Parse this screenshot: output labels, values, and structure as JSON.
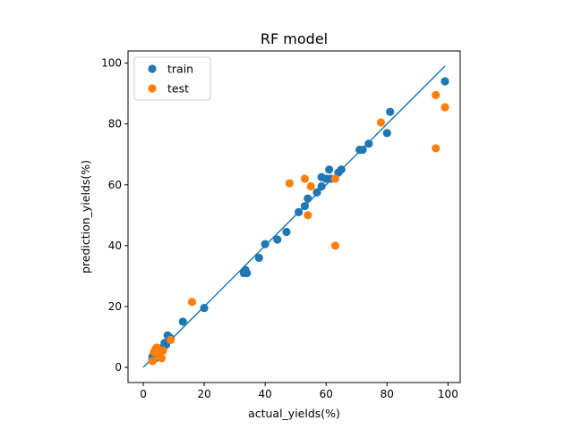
{
  "chart_data": {
    "type": "scatter",
    "title": "RF model",
    "xlabel": "actual_yields(%)",
    "ylabel": "prediction_yields(%)",
    "xlim": [
      -5,
      104
    ],
    "ylim": [
      -5,
      104
    ],
    "xticks": [
      0,
      20,
      40,
      60,
      80,
      100
    ],
    "yticks": [
      0,
      20,
      40,
      60,
      80,
      100
    ],
    "grid": false,
    "legend_position": "top-left",
    "identity_line": {
      "x": [
        0,
        99
      ],
      "y": [
        0,
        99
      ],
      "color": "#1f77b4"
    },
    "series": [
      {
        "name": "train",
        "color": "#1f77b4",
        "points": [
          [
            3,
            2.5
          ],
          [
            3,
            3.5
          ],
          [
            3.5,
            4
          ],
          [
            4,
            3
          ],
          [
            4.5,
            4.5
          ],
          [
            5,
            4
          ],
          [
            5,
            5.5
          ],
          [
            5.5,
            5
          ],
          [
            6,
            6
          ],
          [
            6.5,
            6.5
          ],
          [
            7,
            7
          ],
          [
            7,
            8
          ],
          [
            7.5,
            7.5
          ],
          [
            8,
            10.5
          ],
          [
            8.5,
            10
          ],
          [
            9,
            9.5
          ],
          [
            13,
            15
          ],
          [
            20,
            19.5
          ],
          [
            33,
            31
          ],
          [
            33.5,
            32
          ],
          [
            34,
            31
          ],
          [
            38,
            36
          ],
          [
            40,
            40.5
          ],
          [
            44,
            42
          ],
          [
            47,
            44.5
          ],
          [
            51,
            51
          ],
          [
            53,
            53
          ],
          [
            54,
            55.5
          ],
          [
            57,
            57.5
          ],
          [
            58.5,
            59.5
          ],
          [
            58.5,
            62.5
          ],
          [
            60,
            62
          ],
          [
            61,
            65
          ],
          [
            61.5,
            62
          ],
          [
            64,
            64
          ],
          [
            65,
            65
          ],
          [
            71,
            71.5
          ],
          [
            72,
            71.5
          ],
          [
            74,
            73.5
          ],
          [
            80,
            77
          ],
          [
            81,
            84
          ],
          [
            99,
            94
          ]
        ]
      },
      {
        "name": "test",
        "color": "#ff7f0e",
        "points": [
          [
            3,
            2
          ],
          [
            3.5,
            5
          ],
          [
            4,
            6
          ],
          [
            4.5,
            6.5
          ],
          [
            5,
            3.5
          ],
          [
            5.5,
            4.5
          ],
          [
            6,
            3
          ],
          [
            6.5,
            5.5
          ],
          [
            9,
            9
          ],
          [
            16,
            21.5
          ],
          [
            48,
            60.5
          ],
          [
            53,
            62
          ],
          [
            54,
            50
          ],
          [
            55,
            59.5
          ],
          [
            63,
            62
          ],
          [
            63,
            40
          ],
          [
            78,
            80.5
          ],
          [
            96,
            89.5
          ],
          [
            96,
            72
          ],
          [
            99,
            85.5
          ]
        ]
      }
    ]
  }
}
